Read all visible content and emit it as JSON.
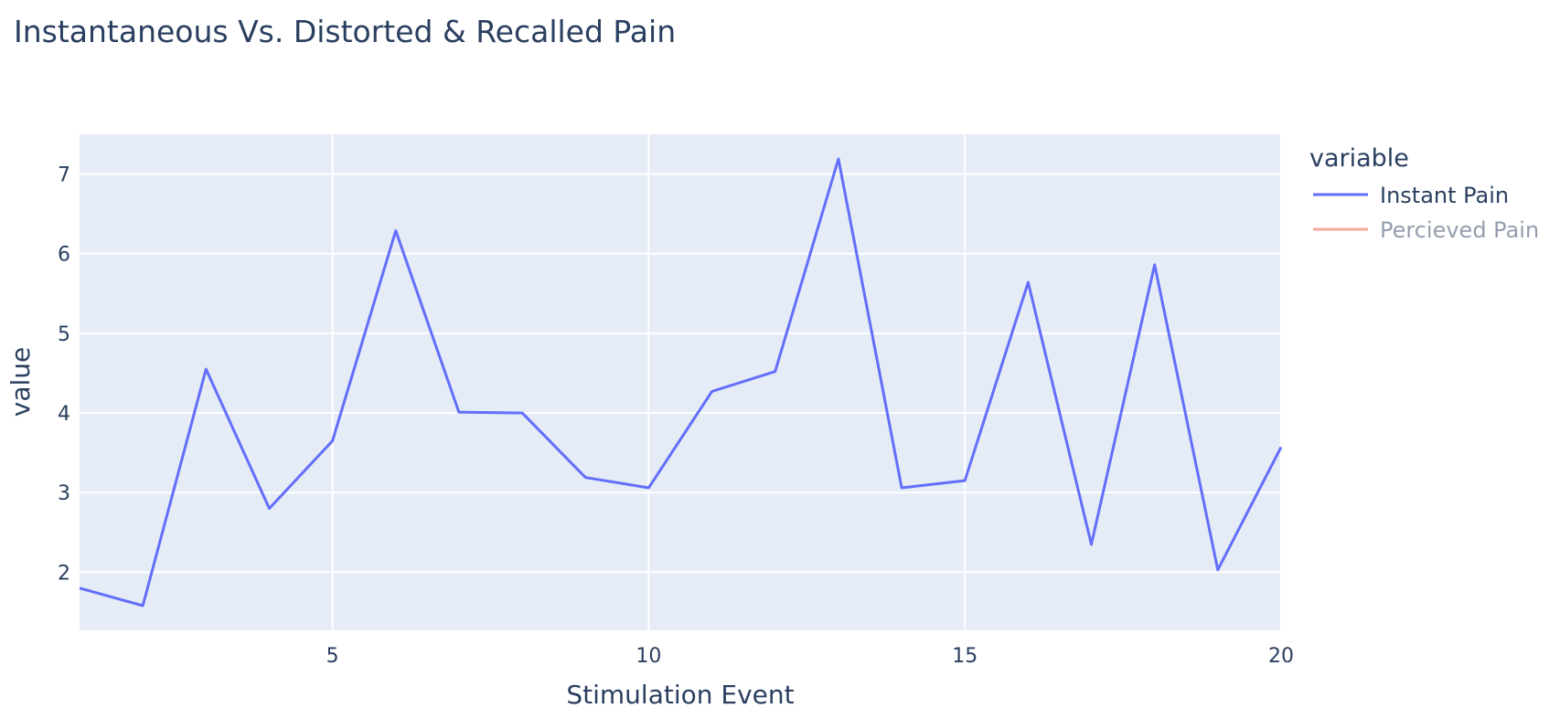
{
  "chart_data": {
    "type": "line",
    "title": "Instantaneous Vs. Distorted & Recalled Pain",
    "xlabel": "Stimulation Event",
    "ylabel": "value",
    "xlim": [
      1,
      20
    ],
    "ylim": [
      1.27,
      7.5
    ],
    "x_ticks": [
      5,
      10,
      15,
      20
    ],
    "y_ticks": [
      2,
      3,
      4,
      5,
      6,
      7
    ],
    "grid": true,
    "plot_background": "#e5ecf6",
    "legend": {
      "title": "variable",
      "placement": "right"
    },
    "series": [
      {
        "name": "Instant Pain",
        "color": "#636efa",
        "visible": true,
        "x": [
          1,
          2,
          3,
          4,
          5,
          6,
          7,
          8,
          9,
          10,
          11,
          12,
          13,
          14,
          15,
          16,
          17,
          18,
          19,
          20
        ],
        "values": [
          1.8,
          1.58,
          4.55,
          2.8,
          3.65,
          6.29,
          4.01,
          4.0,
          3.19,
          3.06,
          4.27,
          4.52,
          7.19,
          3.06,
          3.15,
          5.64,
          2.35,
          5.86,
          2.03,
          3.57
        ]
      },
      {
        "name": "Percieved Pain",
        "color": "#ef553b",
        "visible": false,
        "x": [],
        "values": []
      }
    ]
  }
}
